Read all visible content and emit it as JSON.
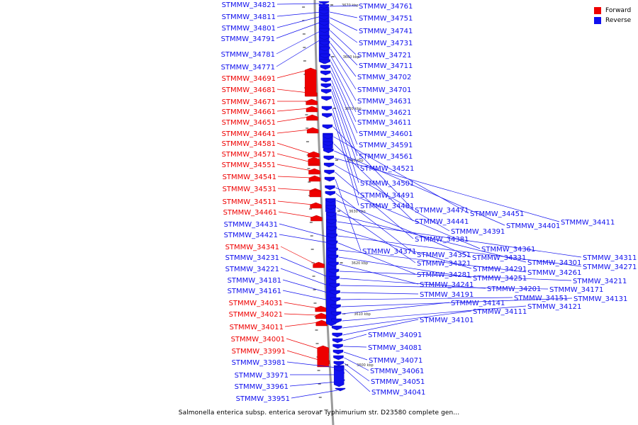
{
  "legend": {
    "forward_label": "Forward",
    "reverse_label": "Reverse",
    "forward_color": "#ee0000",
    "reverse_color": "#1010ee"
  },
  "caption": "Salmonella enterica subsp. enterica serovar Typhimurium str. D23580 complete gen...",
  "scale_labels": [
    "3670 kbp",
    "3660 kbp",
    "3650 kbp",
    "3640 kbp",
    "3630 kbp",
    "3620 kbp",
    "3610 kbp",
    "3600 kbp"
  ],
  "left_labels": [
    {
      "text": "STMMW_34821",
      "strand": "reverse"
    },
    {
      "text": "STMMW_34811",
      "strand": "reverse"
    },
    {
      "text": "STMMW_34801",
      "strand": "reverse"
    },
    {
      "text": "STMMW_34791",
      "strand": "reverse"
    },
    {
      "text": "STMMW_34781",
      "strand": "reverse"
    },
    {
      "text": "STMMW_34771",
      "strand": "reverse"
    },
    {
      "text": "STMMW_34691",
      "strand": "forward"
    },
    {
      "text": "STMMW_34681",
      "strand": "forward"
    },
    {
      "text": "STMMW_34671",
      "strand": "forward"
    },
    {
      "text": "STMMW_34661",
      "strand": "forward"
    },
    {
      "text": "STMMW_34651",
      "strand": "forward"
    },
    {
      "text": "STMMW_34641",
      "strand": "forward"
    },
    {
      "text": "STMMW_34581",
      "strand": "forward"
    },
    {
      "text": "STMMW_34571",
      "strand": "forward"
    },
    {
      "text": "STMMW_34551",
      "strand": "forward"
    },
    {
      "text": "STMMW_34541",
      "strand": "forward"
    },
    {
      "text": "STMMW_34531",
      "strand": "forward"
    },
    {
      "text": "STMMW_34511",
      "strand": "forward"
    },
    {
      "text": "STMMW_34461",
      "strand": "forward"
    },
    {
      "text": "STMMW_34431",
      "strand": "reverse"
    },
    {
      "text": "STMMW_34421",
      "strand": "reverse"
    },
    {
      "text": "STMMW_34341",
      "strand": "forward"
    },
    {
      "text": "STMMW_34231",
      "strand": "reverse"
    },
    {
      "text": "STMMW_34221",
      "strand": "reverse"
    },
    {
      "text": "STMMW_34181",
      "strand": "reverse"
    },
    {
      "text": "STMMW_34161",
      "strand": "reverse"
    },
    {
      "text": "STMMW_34031",
      "strand": "forward"
    },
    {
      "text": "STMMW_34021",
      "strand": "forward"
    },
    {
      "text": "STMMW_34011",
      "strand": "forward"
    },
    {
      "text": "STMMW_34001",
      "strand": "forward"
    },
    {
      "text": "STMMW_33991",
      "strand": "forward"
    },
    {
      "text": "STMMW_33981",
      "strand": "reverse"
    },
    {
      "text": "STMMW_33971",
      "strand": "reverse"
    },
    {
      "text": "STMMW_33961",
      "strand": "reverse"
    },
    {
      "text": "STMMW_33951",
      "strand": "reverse"
    }
  ],
  "right_labels": [
    {
      "text": "STMMW_34761",
      "strand": "reverse"
    },
    {
      "text": "STMMW_34751",
      "strand": "reverse"
    },
    {
      "text": "STMMW_34741",
      "strand": "reverse"
    },
    {
      "text": "STMMW_34731",
      "strand": "reverse"
    },
    {
      "text": "STMMW_34721",
      "strand": "reverse"
    },
    {
      "text": "STMMW_34711",
      "strand": "reverse"
    },
    {
      "text": "STMMW_34702",
      "strand": "reverse"
    },
    {
      "text": "STMMW_34701",
      "strand": "reverse"
    },
    {
      "text": "STMMW_34631",
      "strand": "reverse"
    },
    {
      "text": "STMMW_34621",
      "strand": "reverse"
    },
    {
      "text": "STMMW_34611",
      "strand": "reverse"
    },
    {
      "text": "STMMW_34601",
      "strand": "reverse"
    },
    {
      "text": "STMMW_34591",
      "strand": "reverse"
    },
    {
      "text": "STMMW_34561",
      "strand": "reverse"
    },
    {
      "text": "STMMW_34521",
      "strand": "reverse"
    },
    {
      "text": "STMMW_34501",
      "strand": "reverse"
    },
    {
      "text": "STMMW_34491",
      "strand": "reverse"
    },
    {
      "text": "STMMW_34481",
      "strand": "reverse"
    },
    {
      "text": "STMMW_34471",
      "strand": "reverse"
    },
    {
      "text": "STMMW_34451",
      "strand": "reverse"
    },
    {
      "text": "STMMW_34441",
      "strand": "reverse"
    },
    {
      "text": "STMMW_34401",
      "strand": "reverse"
    },
    {
      "text": "STMMW_34411",
      "strand": "reverse"
    },
    {
      "text": "STMMW_34391",
      "strand": "reverse"
    },
    {
      "text": "STMMW_34381",
      "strand": "reverse"
    },
    {
      "text": "STMMW_34371",
      "strand": "reverse"
    },
    {
      "text": "STMMW_34361",
      "strand": "reverse"
    },
    {
      "text": "STMMW_34351",
      "strand": "reverse"
    },
    {
      "text": "STMMW_34331",
      "strand": "reverse"
    },
    {
      "text": "STMMW_34321",
      "strand": "reverse"
    },
    {
      "text": "STMMW_34301",
      "strand": "reverse"
    },
    {
      "text": "STMMW_34311",
      "strand": "reverse"
    },
    {
      "text": "STMMW_34291",
      "strand": "reverse"
    },
    {
      "text": "STMMW_34271",
      "strand": "reverse"
    },
    {
      "text": "STMMW_34281",
      "strand": "reverse"
    },
    {
      "text": "STMMW_34261",
      "strand": "reverse"
    },
    {
      "text": "STMMW_34251",
      "strand": "reverse"
    },
    {
      "text": "STMMW_34241",
      "strand": "reverse"
    },
    {
      "text": "STMMW_34211",
      "strand": "reverse"
    },
    {
      "text": "STMMW_34201",
      "strand": "reverse"
    },
    {
      "text": "STMMW_34171",
      "strand": "reverse"
    },
    {
      "text": "STMMW_34191",
      "strand": "reverse"
    },
    {
      "text": "STMMW_34151",
      "strand": "reverse"
    },
    {
      "text": "STMMW_34131",
      "strand": "reverse"
    },
    {
      "text": "STMMW_34141",
      "strand": "reverse"
    },
    {
      "text": "STMMW_34121",
      "strand": "reverse"
    },
    {
      "text": "STMMW_34111",
      "strand": "reverse"
    },
    {
      "text": "STMMW_34101",
      "strand": "reverse"
    },
    {
      "text": "STMMW_34091",
      "strand": "reverse"
    },
    {
      "text": "STMMW_34081",
      "strand": "reverse"
    },
    {
      "text": "STMMW_34071",
      "strand": "reverse"
    },
    {
      "text": "STMMW_34061",
      "strand": "reverse"
    },
    {
      "text": "STMMW_34051",
      "strand": "reverse"
    },
    {
      "text": "STMMW_34041",
      "strand": "reverse"
    }
  ]
}
